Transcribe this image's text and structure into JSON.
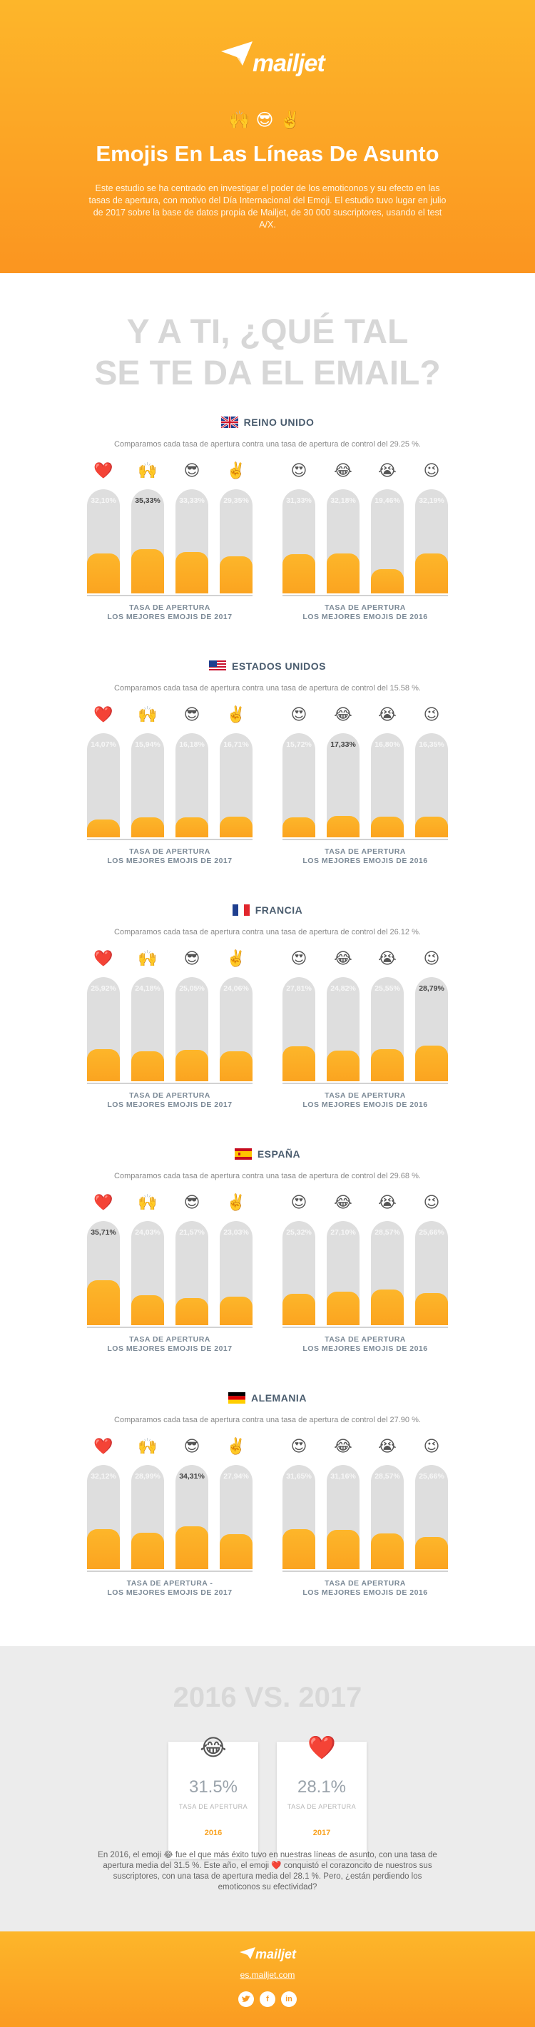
{
  "header": {
    "logo": "mailjet",
    "emojis": "🙌😎✌️",
    "title": "Emojis En Las Líneas De Asunto",
    "description": "Este estudio se ha centrado en investigar el poder de los emoticonos y su efecto en las tasas de apertura, con motivo del Día Internacional del Emoji. El estudio tuvo lugar en julio de 2017 sobre la base de datos propia de Mailjet, de 30 000 suscriptores, usando el test A/X."
  },
  "headline": {
    "line1": "Y A TI, ¿QUÉ TAL",
    "line2": "SE TE DA EL EMAIL?"
  },
  "labels": {
    "rate_line1": "TASA DE APERTURA",
    "rate_line1_de": "TASA DE APERTURA -",
    "best_2017": "LOS MEJORES EMOJIS DE 2017",
    "best_2016": "LOS MEJORES EMOJIS DE 2016"
  },
  "emojis_2017": [
    "❤️",
    "🙌",
    "😎",
    "✌️"
  ],
  "emojis_2016": [
    "😍",
    "😂",
    "😭",
    "😉"
  ],
  "countries": [
    {
      "name": "REINO UNIDO",
      "subtitle": "Comparamos cada tasa de apertura contra una tasa de apertura de control del 29.25 %.",
      "v2017": [
        "32,10%",
        "35,33%",
        "33,33%",
        "29,35%"
      ],
      "f2017": [
        0.321,
        0.353,
        0.333,
        0.294
      ],
      "top2017": 1,
      "v2016": [
        "31,33%",
        "32,18%",
        "19,46%",
        "32,19%"
      ],
      "f2016": [
        0.313,
        0.322,
        0.195,
        0.322
      ],
      "top2016": -1
    },
    {
      "name": "ESTADOS UNIDOS",
      "subtitle": "Comparamos cada tasa de apertura contra una tasa de apertura de control del 15.58 %.",
      "v2017": [
        "14,07%",
        "15,94%",
        "16,18%",
        "16,71%"
      ],
      "f2017": [
        0.141,
        0.159,
        0.162,
        0.167
      ],
      "top2017": -1,
      "v2016": [
        "15,72%",
        "17,33%",
        "16,80%",
        "16,35%"
      ],
      "f2016": [
        0.157,
        0.173,
        0.168,
        0.164
      ],
      "top2016": 1
    },
    {
      "name": "FRANCIA",
      "subtitle": "Comparamos cada tasa de apertura contra una tasa de apertura de control del 26.12 %.",
      "v2017": [
        "25,92%",
        "24,18%",
        "25,05%",
        "24,06%"
      ],
      "f2017": [
        0.259,
        0.242,
        0.251,
        0.241
      ],
      "top2017": -1,
      "v2016": [
        "27,81%",
        "24,82%",
        "25,55%",
        "28,79%"
      ],
      "f2016": [
        0.278,
        0.248,
        0.256,
        0.288
      ],
      "top2016": 3
    },
    {
      "name": "ESPAÑA",
      "subtitle": "Comparamos cada tasa de apertura contra una tasa de apertura de control del 29.68 %.",
      "v2017": [
        "35,71%",
        "24,03%",
        "21,57%",
        "23,03%"
      ],
      "f2017": [
        0.357,
        0.24,
        0.216,
        0.23
      ],
      "top2017": 0,
      "v2016": [
        "25,32%",
        "27,10%",
        "28,57%",
        "25,66%"
      ],
      "f2016": [
        0.253,
        0.271,
        0.286,
        0.257
      ],
      "top2016": -1
    },
    {
      "name": "ALEMANIA",
      "subtitle": "Comparamos cada tasa de apertura contra una tasa de apertura de control del 27.90 %.",
      "v2017": [
        "32,12%",
        "28,99%",
        "34,31%",
        "27,94%"
      ],
      "f2017": [
        0.321,
        0.29,
        0.343,
        0.279
      ],
      "top2017": 2,
      "v2016": [
        "31,65%",
        "31,16%",
        "28,57%",
        "25,66%"
      ],
      "f2016": [
        0.317,
        0.312,
        0.286,
        0.257
      ],
      "top2016": -1
    }
  ],
  "comparison": {
    "title": "2016 VS. 2017",
    "cards": [
      {
        "emoji": "😂",
        "value": "31.5%",
        "label": "TASA DE APERTURA",
        "year": "2016"
      },
      {
        "emoji": "❤️",
        "value": "28.1%",
        "label": "TASA DE APERTURA",
        "year": "2017"
      }
    ],
    "text": "En 2016, el emoji 😂 fue el que más éxito tuvo en nuestras líneas de asunto, con una tasa de apertura media del 31.5 %. Este año, el emoji ❤️ conquistó el corazoncito de nuestros sus suscriptores, con una tasa de apertura media del 28.1 %. Pero, ¿están perdiendo los emoticonos su efectividad?"
  },
  "footer": {
    "logo": "mailjet",
    "url": "es.mailjet.com",
    "social": [
      "twitter",
      "facebook",
      "linkedin"
    ]
  },
  "colors": {
    "accent": "#fb9b21",
    "bar": "#dedede",
    "text": "#555555"
  }
}
